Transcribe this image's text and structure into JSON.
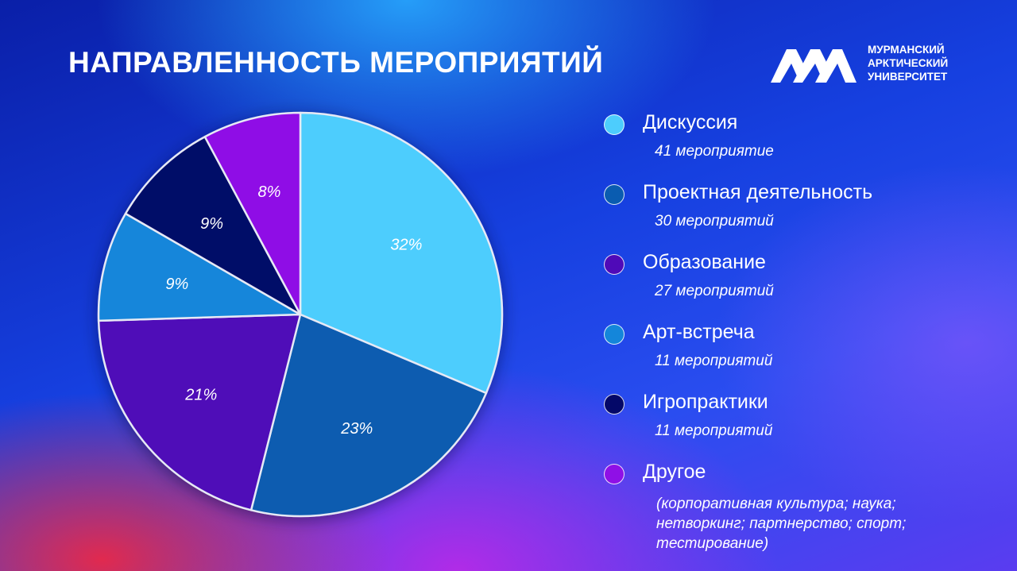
{
  "title": "НАПРАВЛЕННОСТЬ МЕРОПРИЯТИЙ",
  "logo": {
    "lines": [
      "МУРМАНСКИЙ",
      "АРКТИЧЕСКИЙ",
      "УНИВЕРСИТЕТ"
    ]
  },
  "chart_data": {
    "type": "pie",
    "title": "НАПРАВЛЕННОСТЬ МЕРОПРИЯТИЙ",
    "legend_position": "right",
    "slices": [
      {
        "name": "Дискуссия",
        "value": 32,
        "label": "32%",
        "color": "#4dcdfd"
      },
      {
        "name": "Проектная деятельность",
        "value": 23,
        "label": "23%",
        "color": "#0a5cb0"
      },
      {
        "name": "Образование",
        "value": 21,
        "label": "21%",
        "color": "#4f0ab8"
      },
      {
        "name": "Арт-встреча",
        "value": 9,
        "label": "9%",
        "color": "#1486da"
      },
      {
        "name": "Игропрактики",
        "value": 9,
        "label": "9%",
        "color": "#040868"
      },
      {
        "name": "Другое",
        "value": 8,
        "label": "8%",
        "color": "#8f10e6"
      }
    ]
  },
  "legend": [
    {
      "label": "Дискуссия",
      "sub": "41 мероприятие",
      "color": "#4dcdfd"
    },
    {
      "label": "Проектная деятельность",
      "sub": "30 мероприятий",
      "color": "#0a5cb0"
    },
    {
      "label": "Образование",
      "sub": "27 мероприятий",
      "color": "#4f0ab8"
    },
    {
      "label": "Арт-встреча",
      "sub": "11 мероприятий",
      "color": "#1486da"
    },
    {
      "label": "Игропрактики",
      "sub": "11 мероприятий",
      "color": "#040868"
    },
    {
      "label": "Другое",
      "sub": "",
      "color": "#8f10e6"
    }
  ],
  "other_note": [
    "(корпоративная культура; наука;",
    "нетворкинг; партнерство; спорт;",
    "тестирование)"
  ]
}
